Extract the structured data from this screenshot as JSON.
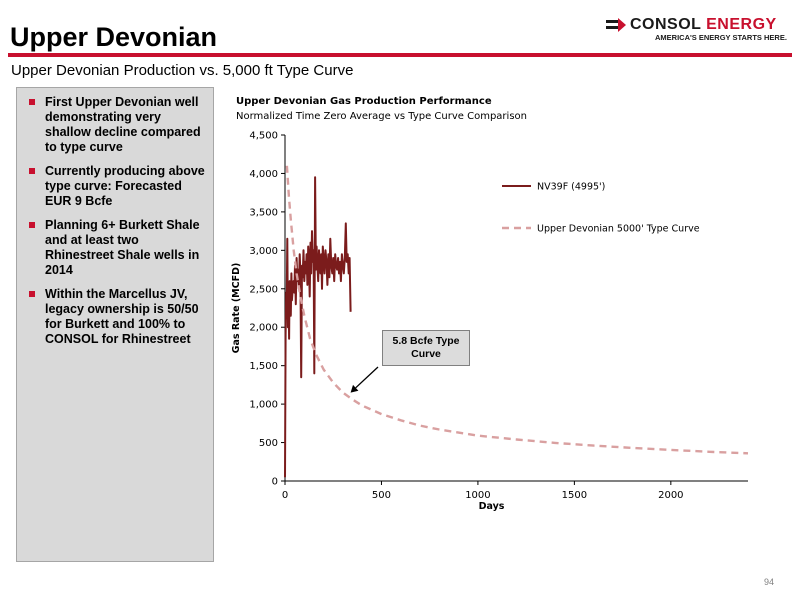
{
  "header": {
    "title": "Upper Devonian",
    "subtitle": "Upper Devonian Production vs. 5,000 ft Type Curve",
    "logo_name_part1": "CONSOL",
    "logo_name_part2": "ENERGY",
    "logo_tagline": "AMERICA'S ENERGY STARTS HERE."
  },
  "bullets": [
    "First Upper Devonian well demonstrating very shallow decline compared to type curve",
    "Currently producing above type curve: Forecasted EUR 9 Bcfe",
    "Planning 6+ Burkett Shale and at least two Rhinestreet Shale wells in 2014",
    "Within the Marcellus JV, legacy ownership is 50/50 for Burkett and 100% to CONSOL for Rhinestreet"
  ],
  "page_number": "94",
  "colors": {
    "accent": "#c8102e",
    "actual_series": "#7b1c1c",
    "type_curve": "#d9a0a0"
  },
  "chart_data": {
    "type": "line",
    "title": "Upper Devonian Gas Production Performance",
    "subtitle": "Normalized Time Zero Average vs Type Curve Comparison",
    "xlabel": "Days",
    "ylabel": "Gas Rate (MCFD)",
    "xlim": [
      0,
      2400
    ],
    "ylim": [
      0,
      4500
    ],
    "xticks": [
      "0",
      "500",
      "1000",
      "1500",
      "2000"
    ],
    "yticks": [
      "0",
      "500",
      "1,000",
      "1,500",
      "2,000",
      "2,500",
      "3,000",
      "3,500",
      "4,000",
      "4,500"
    ],
    "grid": false,
    "legend_position": "upper-right",
    "annotation": {
      "text": "5.8 Bcfe Type Curve",
      "points_to": [
        340,
        1150
      ]
    },
    "series": [
      {
        "name": "NV39F (4995')",
        "style": "solid",
        "x": [
          0,
          3,
          6,
          9,
          12,
          15,
          18,
          21,
          24,
          27,
          30,
          33,
          36,
          40,
          44,
          48,
          52,
          56,
          60,
          64,
          68,
          72,
          76,
          80,
          84,
          88,
          92,
          96,
          100,
          104,
          108,
          112,
          116,
          120,
          124,
          128,
          132,
          136,
          140,
          144,
          148,
          152,
          156,
          160,
          164,
          168,
          172,
          176,
          180,
          184,
          188,
          192,
          196,
          200,
          205,
          210,
          215,
          220,
          225,
          230,
          235,
          240,
          245,
          250,
          255,
          260,
          265,
          270,
          275,
          280,
          285,
          290,
          295,
          300,
          305,
          310,
          315,
          320,
          325,
          330,
          335,
          340
        ],
        "y": [
          50,
          1900,
          2450,
          2300,
          3150,
          2000,
          2500,
          1850,
          2600,
          2400,
          2150,
          2700,
          2350,
          2500,
          2600,
          2450,
          2800,
          2300,
          2900,
          2600,
          2750,
          2500,
          2950,
          2700,
          1350,
          2800,
          2650,
          3000,
          2600,
          2850,
          2700,
          2950,
          2550,
          3050,
          2900,
          2400,
          3100,
          2700,
          3250,
          2850,
          3000,
          1400,
          3950,
          2750,
          3050,
          2800,
          2600,
          3000,
          2850,
          2700,
          2950,
          2500,
          3050,
          2900,
          2700,
          3000,
          2850,
          2550,
          2950,
          2650,
          3150,
          2800,
          2700,
          2900,
          2600,
          2950,
          2800,
          2750,
          2900,
          2700,
          2850,
          2600,
          2950,
          2800,
          2700,
          2900,
          3350,
          2850,
          2950,
          2700,
          2900,
          2200
        ]
      },
      {
        "name": "Upper Devonian 5000' Type Curve",
        "style": "dashed",
        "x": [
          10,
          20,
          30,
          45,
          60,
          80,
          100,
          130,
          160,
          200,
          250,
          300,
          350,
          400,
          500,
          600,
          700,
          800,
          1000,
          1200,
          1400,
          1600,
          1800,
          2000,
          2200,
          2400
        ],
        "y": [
          4100,
          3700,
          3400,
          3000,
          2700,
          2400,
          2150,
          1850,
          1650,
          1450,
          1280,
          1150,
          1060,
          980,
          870,
          790,
          720,
          670,
          590,
          540,
          495,
          460,
          430,
          405,
          380,
          360
        ]
      }
    ]
  }
}
